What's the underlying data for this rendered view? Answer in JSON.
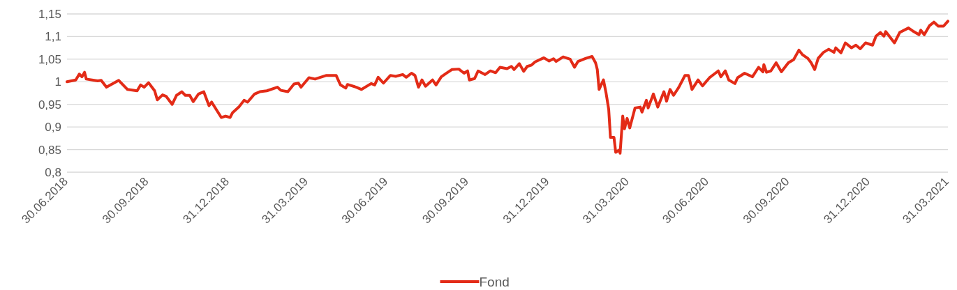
{
  "chart_data": {
    "type": "line",
    "xlim": [
      "2018-06-30",
      "2021-03-31"
    ],
    "ylim": [
      0.8,
      1.15
    ],
    "xticks": [
      {
        "value": "2018-06-30",
        "label": "30.06.2018"
      },
      {
        "value": "2018-09-30",
        "label": "30.09.2018"
      },
      {
        "value": "2018-12-31",
        "label": "31.12.2018"
      },
      {
        "value": "2019-03-31",
        "label": "31.03.2019"
      },
      {
        "value": "2019-06-30",
        "label": "30.06.2019"
      },
      {
        "value": "2019-09-30",
        "label": "30.09.2019"
      },
      {
        "value": "2019-12-31",
        "label": "31.12.2019"
      },
      {
        "value": "2020-03-31",
        "label": "31.03.2020"
      },
      {
        "value": "2020-06-30",
        "label": "30.06.2020"
      },
      {
        "value": "2020-09-30",
        "label": "30.09.2020"
      },
      {
        "value": "2020-12-31",
        "label": "31.12.2020"
      },
      {
        "value": "2021-03-31",
        "label": "31.03.2021"
      }
    ],
    "yticks": [
      {
        "value": 0.8,
        "label": "0,8"
      },
      {
        "value": 0.85,
        "label": "0,85"
      },
      {
        "value": 0.9,
        "label": "0,9"
      },
      {
        "value": 0.95,
        "label": "0,95"
      },
      1,
      {
        "value": 1.05,
        "label": "1,05"
      },
      {
        "value": 1.1,
        "label": "1,1"
      },
      {
        "value": 1.15,
        "label": "1,15"
      }
    ],
    "grid": "y",
    "legend": "bottom",
    "marker": "none",
    "line_style": "solid",
    "series": [
      {
        "name": "Fond",
        "color": "#e32b17",
        "x": [
          "2018-06-30",
          "2018-07-10",
          "2018-07-14",
          "2018-07-17",
          "2018-07-20",
          "2018-07-22",
          "2018-08-04",
          "2018-08-08",
          "2018-08-14",
          "2018-08-28",
          "2018-09-07",
          "2018-09-18",
          "2018-09-22",
          "2018-09-26",
          "2018-10-01",
          "2018-10-08",
          "2018-10-11",
          "2018-10-17",
          "2018-10-21",
          "2018-10-28",
          "2018-11-02",
          "2018-11-08",
          "2018-11-12",
          "2018-11-17",
          "2018-11-21",
          "2018-11-27",
          "2018-12-03",
          "2018-12-09",
          "2018-12-12",
          "2018-12-23",
          "2018-12-28",
          "2019-01-02",
          "2019-01-05",
          "2019-01-12",
          "2019-01-18",
          "2019-01-22",
          "2019-01-30",
          "2019-02-05",
          "2019-02-13",
          "2019-02-25",
          "2019-03-01",
          "2019-03-09",
          "2019-03-16",
          "2019-03-21",
          "2019-03-24",
          "2019-04-02",
          "2019-04-09",
          "2019-04-22",
          "2019-05-03",
          "2019-05-08",
          "2019-05-14",
          "2019-05-16",
          "2019-05-26",
          "2019-06-01",
          "2019-06-12",
          "2019-06-16",
          "2019-06-20",
          "2019-06-26",
          "2019-07-04",
          "2019-07-10",
          "2019-07-18",
          "2019-07-22",
          "2019-07-28",
          "2019-08-01",
          "2019-08-05",
          "2019-08-09",
          "2019-08-13",
          "2019-08-21",
          "2019-08-25",
          "2019-08-31",
          "2019-09-06",
          "2019-09-12",
          "2019-09-20",
          "2019-09-26",
          "2019-09-30",
          "2019-10-02",
          "2019-10-08",
          "2019-10-12",
          "2019-10-20",
          "2019-10-26",
          "2019-11-01",
          "2019-11-06",
          "2019-11-14",
          "2019-11-19",
          "2019-11-22",
          "2019-11-28",
          "2019-12-03",
          "2019-12-07",
          "2019-12-12",
          "2019-12-16",
          "2019-12-26",
          "2020-01-01",
          "2020-01-06",
          "2020-01-09",
          "2020-01-17",
          "2020-01-25",
          "2020-01-30",
          "2020-02-03",
          "2020-02-12",
          "2020-02-19",
          "2020-02-23",
          "2020-02-25",
          "2020-02-27",
          "2020-03-03",
          "2020-03-06",
          "2020-03-09",
          "2020-03-11",
          "2020-03-15",
          "2020-03-17",
          "2020-03-21",
          "2020-03-22",
          "2020-03-25",
          "2020-03-27",
          "2020-03-30",
          "2020-04-02",
          "2020-04-08",
          "2020-04-14",
          "2020-04-16",
          "2020-04-21",
          "2020-04-23",
          "2020-04-29",
          "2020-05-04",
          "2020-05-11",
          "2020-05-14",
          "2020-05-18",
          "2020-05-22",
          "2020-05-28",
          "2020-06-04",
          "2020-06-08",
          "2020-06-12",
          "2020-06-19",
          "2020-06-24",
          "2020-07-02",
          "2020-07-12",
          "2020-07-15",
          "2020-07-20",
          "2020-07-24",
          "2020-07-31",
          "2020-08-03",
          "2020-08-11",
          "2020-08-20",
          "2020-08-27",
          "2020-09-01",
          "2020-09-02",
          "2020-09-05",
          "2020-09-10",
          "2020-09-16",
          "2020-09-22",
          "2020-09-30",
          "2020-10-06",
          "2020-10-12",
          "2020-10-16",
          "2020-10-22",
          "2020-10-26",
          "2020-10-30",
          "2020-11-03",
          "2020-11-09",
          "2020-11-15",
          "2020-11-21",
          "2020-11-23",
          "2020-11-29",
          "2020-12-04",
          "2020-12-11",
          "2020-12-16",
          "2020-12-21",
          "2020-12-27",
          "2021-01-04",
          "2021-01-08",
          "2021-01-13",
          "2021-01-17",
          "2021-01-19",
          "2021-01-23",
          "2021-01-29",
          "2021-02-04",
          "2021-02-14",
          "2021-02-20",
          "2021-02-26",
          "2021-02-28",
          "2021-03-04",
          "2021-03-10",
          "2021-03-15",
          "2021-03-20",
          "2021-03-26",
          "2021-03-31"
        ],
        "values": [
          1.0,
          1.004,
          1.017,
          1.011,
          1.021,
          1.006,
          1.002,
          1.003,
          0.988,
          1.003,
          0.983,
          0.98,
          0.993,
          0.988,
          0.998,
          0.98,
          0.96,
          0.971,
          0.968,
          0.95,
          0.97,
          0.978,
          0.97,
          0.97,
          0.956,
          0.973,
          0.978,
          0.947,
          0.955,
          0.921,
          0.924,
          0.921,
          0.932,
          0.944,
          0.959,
          0.955,
          0.973,
          0.978,
          0.98,
          0.988,
          0.981,
          0.978,
          0.995,
          0.997,
          0.988,
          1.009,
          1.006,
          1.014,
          1.014,
          0.993,
          0.986,
          0.994,
          0.988,
          0.983,
          0.996,
          0.993,
          1.01,
          0.997,
          1.014,
          1.012,
          1.016,
          1.01,
          1.019,
          1.014,
          0.988,
          1.004,
          0.99,
          1.004,
          0.993,
          1.011,
          1.019,
          1.027,
          1.028,
          1.019,
          1.024,
          1.004,
          1.007,
          1.024,
          1.016,
          1.024,
          1.02,
          1.032,
          1.029,
          1.034,
          1.027,
          1.04,
          1.023,
          1.034,
          1.037,
          1.044,
          1.053,
          1.046,
          1.051,
          1.045,
          1.055,
          1.05,
          1.032,
          1.045,
          1.052,
          1.056,
          1.042,
          1.027,
          0.983,
          1.004,
          0.975,
          0.939,
          0.877,
          0.877,
          0.844,
          0.849,
          0.842,
          0.924,
          0.896,
          0.919,
          0.898,
          0.942,
          0.944,
          0.933,
          0.959,
          0.942,
          0.973,
          0.944,
          0.978,
          0.957,
          0.983,
          0.97,
          0.988,
          1.014,
          1.014,
          0.983,
          1.004,
          0.991,
          1.009,
          1.024,
          1.011,
          1.024,
          1.004,
          0.996,
          1.009,
          1.019,
          1.011,
          1.032,
          1.022,
          1.038,
          1.021,
          1.024,
          1.042,
          1.022,
          1.042,
          1.049,
          1.07,
          1.06,
          1.052,
          1.042,
          1.027,
          1.052,
          1.065,
          1.072,
          1.065,
          1.075,
          1.064,
          1.086,
          1.075,
          1.081,
          1.073,
          1.086,
          1.081,
          1.101,
          1.109,
          1.101,
          1.111,
          1.101,
          1.086,
          1.109,
          1.119,
          1.111,
          1.104,
          1.114,
          1.104,
          1.124,
          1.132,
          1.123,
          1.123,
          1.134
        ]
      }
    ]
  }
}
